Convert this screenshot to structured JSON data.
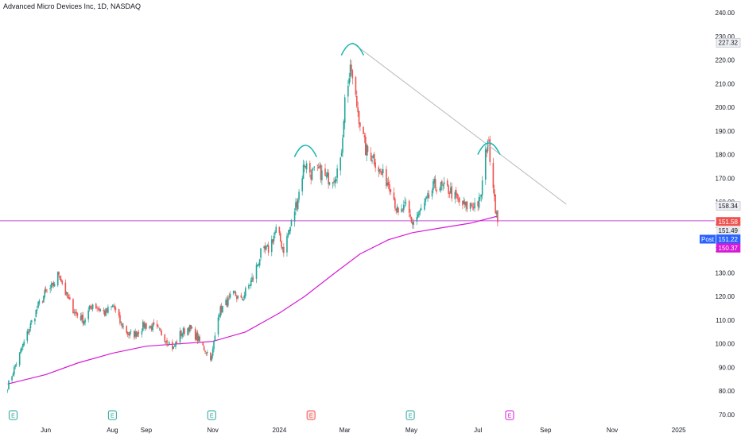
{
  "header": {
    "title": "Advanced Micro Devices Inc, 1D, NASDAQ"
  },
  "colors": {
    "up": "#26a69a",
    "down": "#ef5350",
    "ma": "#d61ad6",
    "level": "#c84fd6",
    "arc": "#1fb7b2",
    "trendline": "#b9b9b9",
    "post": "#2962ff"
  },
  "chart_data": {
    "type": "candlestick",
    "title": "Advanced Micro Devices Inc, 1D, NASDAQ",
    "ylim": [
      70,
      240
    ],
    "yticks": [
      "240.00",
      "230.00",
      "220.00",
      "210.00",
      "200.00",
      "190.00",
      "180.00",
      "170.00",
      "160.00",
      "150.00",
      "140.00",
      "130.00",
      "120.00",
      "110.00",
      "100.00",
      "90.00",
      "80.00",
      "70.00"
    ],
    "xticks": [
      "Jun",
      "Aug",
      "Sep",
      "Nov",
      "2024",
      "Mar",
      "May",
      "Jul",
      "Sep",
      "Nov",
      "2025"
    ],
    "price_path": [
      [
        "2023-04-27",
        82
      ],
      [
        "2023-05-01",
        87
      ],
      [
        "2023-05-10",
        98
      ],
      [
        "2023-05-18",
        108
      ],
      [
        "2023-05-26",
        117
      ],
      [
        "2023-05-31",
        121
      ],
      [
        "2023-06-07",
        124
      ],
      [
        "2023-06-13",
        130
      ],
      [
        "2023-06-20",
        120
      ],
      [
        "2023-06-28",
        113
      ],
      [
        "2023-07-06",
        110
      ],
      [
        "2023-07-14",
        117
      ],
      [
        "2023-07-25",
        113
      ],
      [
        "2023-08-02",
        116
      ],
      [
        "2023-08-08",
        109
      ],
      [
        "2023-08-16",
        104
      ],
      [
        "2023-08-22",
        104
      ],
      [
        "2023-08-30",
        108
      ],
      [
        "2023-09-07",
        107
      ],
      [
        "2023-09-14",
        105
      ],
      [
        "2023-09-26",
        98
      ],
      [
        "2023-10-02",
        104
      ],
      [
        "2023-10-10",
        107
      ],
      [
        "2023-10-17",
        103
      ],
      [
        "2023-10-24",
        98
      ],
      [
        "2023-10-31",
        94
      ],
      [
        "2023-11-06",
        113
      ],
      [
        "2023-11-13",
        117
      ],
      [
        "2023-11-21",
        121
      ],
      [
        "2023-11-27",
        118
      ],
      [
        "2023-12-01",
        122
      ],
      [
        "2023-12-08",
        128
      ],
      [
        "2023-12-15",
        138
      ],
      [
        "2023-12-22",
        140
      ],
      [
        "2023-12-29",
        148
      ],
      [
        "2024-01-05",
        140
      ],
      [
        "2024-01-12",
        151
      ],
      [
        "2024-01-19",
        164
      ],
      [
        "2024-01-24",
        177
      ],
      [
        "2024-01-30",
        172
      ],
      [
        "2024-02-06",
        173
      ],
      [
        "2024-02-13",
        170
      ],
      [
        "2024-02-20",
        171
      ],
      [
        "2024-02-26",
        176
      ],
      [
        "2024-03-01",
        203
      ],
      [
        "2024-03-04",
        211
      ],
      [
        "2024-03-07",
        216
      ],
      [
        "2024-03-08",
        211
      ],
      [
        "2024-03-14",
        196
      ],
      [
        "2024-03-20",
        182
      ],
      [
        "2024-03-27",
        179
      ],
      [
        "2024-04-03",
        172
      ],
      [
        "2024-04-12",
        167
      ],
      [
        "2024-04-19",
        154
      ],
      [
        "2024-04-26",
        158
      ],
      [
        "2024-05-02",
        151
      ],
      [
        "2024-05-08",
        155
      ],
      [
        "2024-05-15",
        160
      ],
      [
        "2024-05-22",
        167
      ],
      [
        "2024-05-29",
        166
      ],
      [
        "2024-06-05",
        165
      ],
      [
        "2024-06-13",
        160
      ],
      [
        "2024-06-20",
        158
      ],
      [
        "2024-06-27",
        159
      ],
      [
        "2024-07-03",
        160
      ],
      [
        "2024-07-08",
        180
      ],
      [
        "2024-07-10",
        187
      ],
      [
        "2024-07-12",
        180
      ],
      [
        "2024-07-15",
        168
      ],
      [
        "2024-07-17",
        158
      ],
      [
        "2024-07-19",
        151.49
      ]
    ],
    "ma_path": [
      [
        "2023-04-27",
        83
      ],
      [
        "2023-06-01",
        87
      ],
      [
        "2023-07-01",
        92
      ],
      [
        "2023-08-01",
        96
      ],
      [
        "2023-09-01",
        99
      ],
      [
        "2023-10-01",
        100
      ],
      [
        "2023-11-01",
        101
      ],
      [
        "2023-12-01",
        105
      ],
      [
        "2024-01-01",
        113
      ],
      [
        "2024-01-24",
        120
      ],
      [
        "2024-02-21",
        130
      ],
      [
        "2024-03-15",
        138
      ],
      [
        "2024-04-10",
        144
      ],
      [
        "2024-05-02",
        147
      ],
      [
        "2024-05-28",
        149
      ],
      [
        "2024-06-24",
        151
      ],
      [
        "2024-07-19",
        154
      ]
    ],
    "horizontal_level": 152,
    "trendline": [
      [
        "2024-03-08",
        227.3
      ],
      [
        "2024-09-20",
        159
      ]
    ],
    "peak_arcs": [
      {
        "date": "2024-01-25",
        "price": 179
      },
      {
        "date": "2024-03-08",
        "price": 222
      },
      {
        "date": "2024-07-11",
        "price": 180
      }
    ],
    "price_labels": [
      {
        "text": "227.32",
        "value": 227.32,
        "style": "grey"
      },
      {
        "text": "158.34",
        "value": 158.34,
        "style": "grey"
      },
      {
        "text": "151.58",
        "value": 151.58,
        "style": "red"
      },
      {
        "text": "151.49",
        "value": 151.49,
        "style": "light"
      },
      {
        "text": "151.22",
        "value": 151.22,
        "style": "blue",
        "tag": "Post"
      },
      {
        "text": "150.37",
        "value": 150.37,
        "style": "magenta"
      }
    ],
    "events": [
      {
        "date": "2023-05-02",
        "label": "E",
        "kind": "earnings"
      },
      {
        "date": "2023-08-01",
        "label": "E",
        "kind": "earnings"
      },
      {
        "date": "2023-10-31",
        "label": "E",
        "kind": "earnings"
      },
      {
        "date": "2024-01-30",
        "label": "E",
        "kind": "earnings-miss"
      },
      {
        "date": "2024-04-30",
        "label": "E",
        "kind": "earnings"
      },
      {
        "date": "2024-07-30",
        "label": "E",
        "kind": "upcoming"
      }
    ]
  }
}
